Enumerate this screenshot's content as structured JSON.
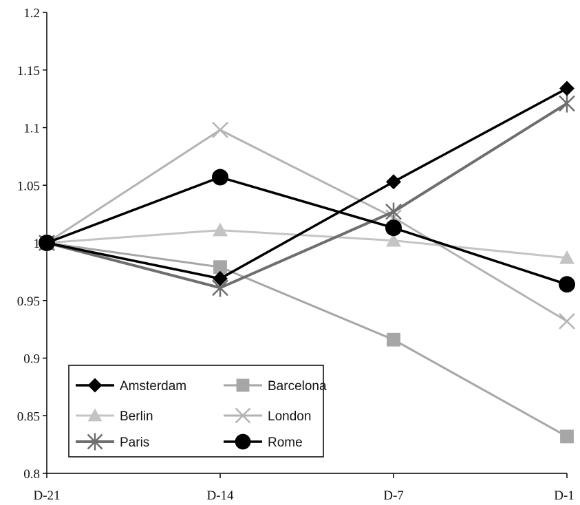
{
  "chart_data": {
    "type": "line",
    "title": "",
    "xlabel": "",
    "ylabel": "",
    "categories": [
      "D-21",
      "D-14",
      "D-7",
      "D-1"
    ],
    "ylim": [
      0.8,
      1.2
    ],
    "yticks": [
      "0.8",
      "0.85",
      "0.9",
      "0.95",
      "1",
      "1.05",
      "1.1",
      "1.15",
      "1.2"
    ],
    "grid": false,
    "legend_position": "bottom-left",
    "series": [
      {
        "name": "Amsterdam",
        "values": [
          1.0,
          0.969,
          1.053,
          1.134
        ],
        "color": "#000000",
        "marker": "diamond",
        "width": 3.5
      },
      {
        "name": "Barcelona",
        "values": [
          1.0,
          0.979,
          0.916,
          0.832
        ],
        "color": "#a6a6a6",
        "marker": "square",
        "width": 3
      },
      {
        "name": "Berlin",
        "values": [
          1.0,
          1.011,
          1.002,
          0.987
        ],
        "color": "#c4c4c4",
        "marker": "triangle",
        "width": 3
      },
      {
        "name": "London",
        "values": [
          1.0,
          1.098,
          1.022,
          0.932
        ],
        "color": "#b3b3b3",
        "marker": "x",
        "width": 3
      },
      {
        "name": "Paris",
        "values": [
          1.0,
          0.961,
          1.027,
          1.121
        ],
        "color": "#6e6e6e",
        "marker": "star",
        "width": 4
      },
      {
        "name": "Rome",
        "values": [
          1.0,
          1.057,
          1.013,
          0.964
        ],
        "color": "#000000",
        "marker": "circle",
        "width": 3.5
      }
    ]
  }
}
